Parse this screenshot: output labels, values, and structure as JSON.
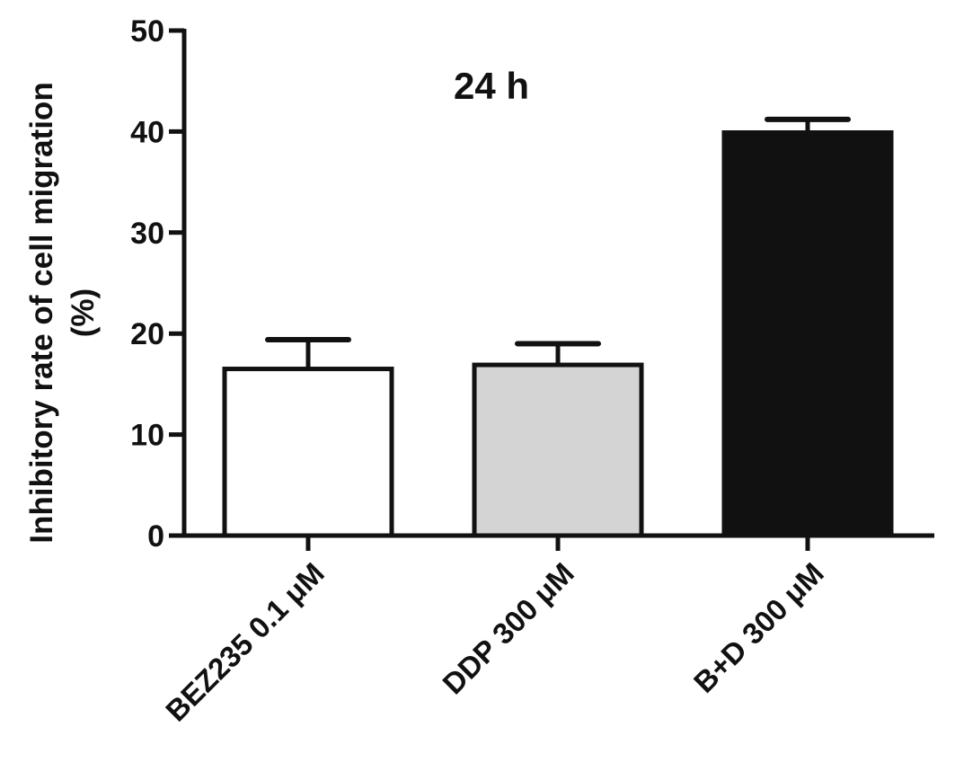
{
  "chart_data": {
    "type": "bar",
    "title": "24 h",
    "ylabel_line1": "Inhibitory rate of cell migration",
    "ylabel_line2": "(%)",
    "categories": [
      "BEZ235 0.1 μM",
      "DDP 300 μM",
      "B+D 300 μM"
    ],
    "values": [
      16.5,
      16.9,
      39.9
    ],
    "errors": [
      2.9,
      2.1,
      1.3
    ],
    "ylim": [
      0,
      50
    ],
    "yticks": [
      0,
      10,
      20,
      30,
      40,
      50
    ],
    "bar_colors": [
      "#ffffff",
      "#d4d4d4",
      "#111111"
    ],
    "grid": false,
    "legend": false
  }
}
